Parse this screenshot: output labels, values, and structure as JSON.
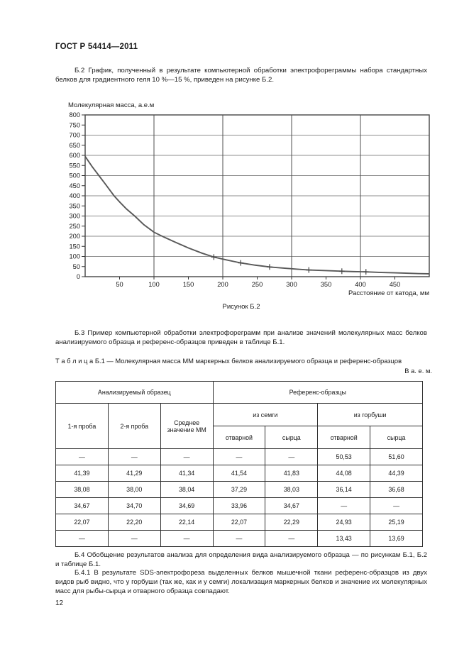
{
  "header": {
    "title": "ГОСТ Р 54414—2011"
  },
  "paragraphs": {
    "b2": "Б.2  График, полученный в результате компьютерной обработки электрофореграммы набора стандартных белков для градиентного геля 10 %—15 %, приведен на рисунке Б.2.",
    "b3": "Б.3  Пример компьютерной обработки электрофореграмм при анализе значений молекулярных масс белков анализируемого образца и референс-образцов приведен в таблице Б.1.",
    "b4": "Б.4  Обобщение результатов анализа для определения вида анализируемого образца — по рисункам Б.1, Б.2 и таблице Б.1.",
    "b41": "Б.4.1  В результате SDS-электрофореза выделенных белков мышечной ткани референс-образцов из двух видов рыб видно, что у горбуши (так же, как и у семги) локализация маркерных белков и значение их молекулярных масс для рыбы-сырца и отварного образца совпадают."
  },
  "figure": {
    "caption": "Рисунок Б.2"
  },
  "chart_data": {
    "type": "line",
    "title": "",
    "ylabel": "Молекулярная масса, а.е.м",
    "xlabel": "Расстояние от катода, мм",
    "xlim": [
      0,
      500
    ],
    "ylim": [
      0,
      800
    ],
    "x_ticks": [
      50,
      100,
      150,
      200,
      250,
      300,
      350,
      400,
      450
    ],
    "y_ticks": [
      0,
      50,
      100,
      150,
      200,
      250,
      300,
      350,
      400,
      450,
      500,
      550,
      600,
      650,
      700,
      750,
      800
    ],
    "x_gridlines": [
      100,
      200,
      300,
      400
    ],
    "y_gridlines": [
      100,
      200,
      300,
      400,
      500,
      600,
      700
    ],
    "grid": "on",
    "legend": "none",
    "curve": [
      [
        0,
        595
      ],
      [
        10,
        545
      ],
      [
        20,
        500
      ],
      [
        30,
        455
      ],
      [
        42,
        400
      ],
      [
        50,
        370
      ],
      [
        60,
        335
      ],
      [
        72,
        300
      ],
      [
        85,
        258
      ],
      [
        100,
        220
      ],
      [
        115,
        195
      ],
      [
        130,
        172
      ],
      [
        150,
        142
      ],
      [
        170,
        116
      ],
      [
        187,
        97
      ],
      [
        205,
        83
      ],
      [
        226,
        68
      ],
      [
        247,
        57
      ],
      [
        268,
        48
      ],
      [
        290,
        42
      ],
      [
        308,
        37
      ],
      [
        325,
        33
      ],
      [
        350,
        30
      ],
      [
        373,
        27
      ],
      [
        390,
        25
      ],
      [
        408,
        24
      ],
      [
        430,
        21
      ],
      [
        450,
        19
      ],
      [
        470,
        17
      ],
      [
        485,
        15
      ],
      [
        500,
        14
      ]
    ],
    "markers": [
      [
        187,
        97
      ],
      [
        226,
        68
      ],
      [
        268,
        48
      ],
      [
        325,
        33
      ],
      [
        373,
        27
      ],
      [
        408,
        24
      ]
    ]
  },
  "table": {
    "label": "Т а б л и ц а   Б.1 — Молекулярная масса ММ маркерных белков анализируемого образца и референс-образцов",
    "units": "В а. е. м.",
    "header": {
      "group_analyzed": "Анализируемый образец",
      "group_reference": "Референс-образцы",
      "col_probe1": "1-я проба",
      "col_probe2": "2-я проба",
      "col_mean": "Среднее значение ММ",
      "sub_salmon": "из семги",
      "sub_pink": "из горбуши",
      "sub_cols": [
        "отварной",
        "сырца",
        "отварной",
        "сырца"
      ]
    },
    "rows": [
      [
        "—",
        "—",
        "—",
        "—",
        "—",
        "50,53",
        "51,60"
      ],
      [
        "41,39",
        "41,29",
        "41,34",
        "41,54",
        "41,83",
        "44,08",
        "44,39"
      ],
      [
        "38,08",
        "38,00",
        "38,04",
        "37,29",
        "38,03",
        "36,14",
        "36,68"
      ],
      [
        "34,67",
        "34,70",
        "34,69",
        "33,96",
        "34,67",
        "—",
        "—"
      ],
      [
        "22,07",
        "22,20",
        "22,14",
        "22,07",
        "22,29",
        "24,93",
        "25,19"
      ],
      [
        "—",
        "—",
        "—",
        "—",
        "—",
        "13,43",
        "13,69"
      ]
    ]
  },
  "footer": {
    "page_number": "12"
  }
}
